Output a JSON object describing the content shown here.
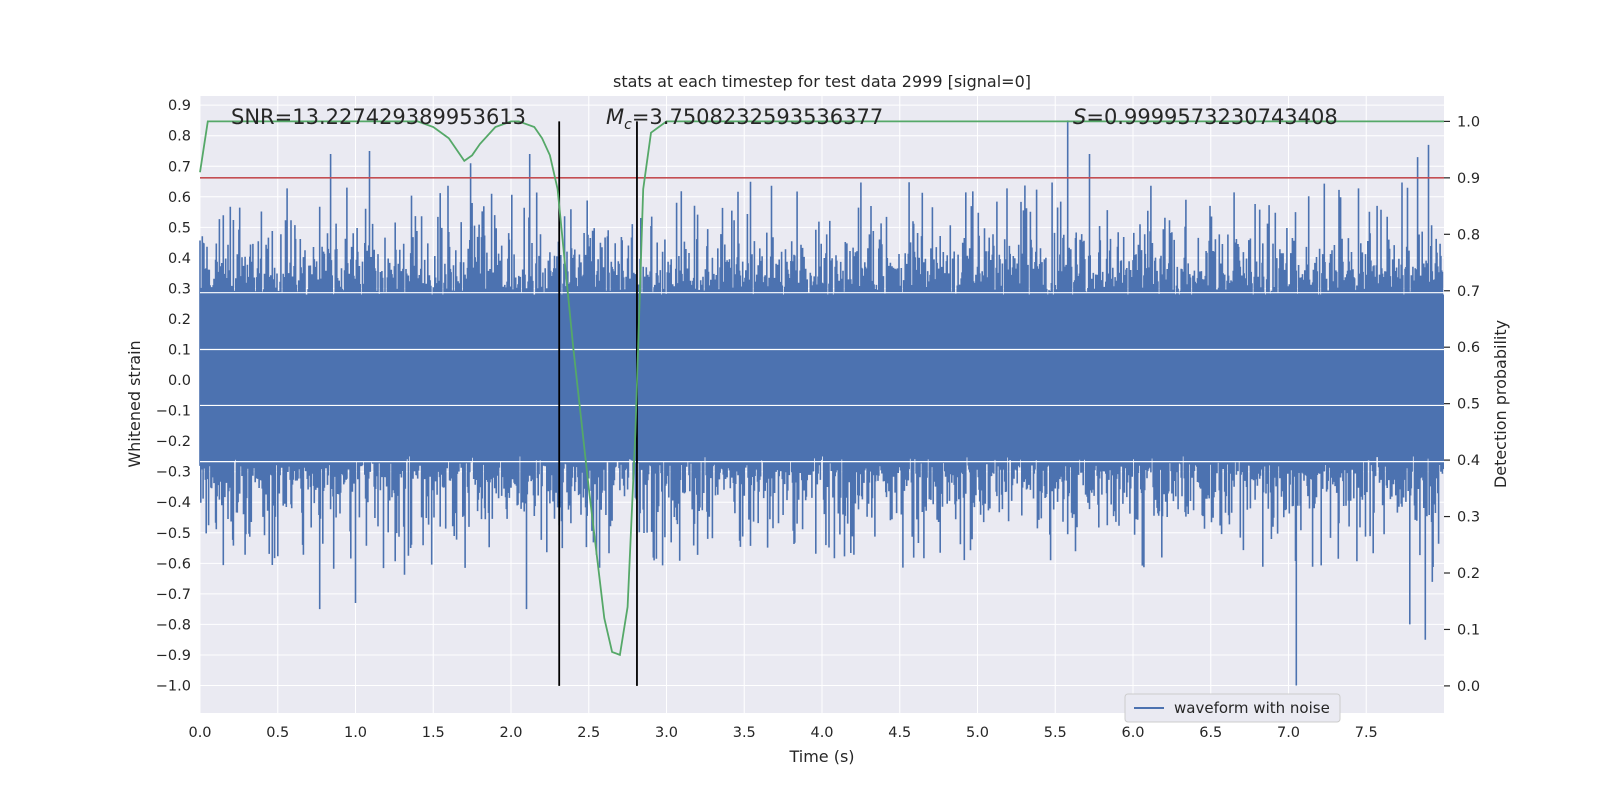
{
  "chart_data": {
    "type": "line",
    "title": "stats at each timestep for test data 2999 [signal=0]",
    "xlabel": "Time (s)",
    "ylabel_left": "Whitened strain",
    "ylabel_right": "Detection probability",
    "xlim": [
      0.0,
      8.0
    ],
    "ylim_left": [
      -1.09,
      0.93
    ],
    "ylim_right": [
      -0.048,
      1.045
    ],
    "x_ticks": [
      0.0,
      0.5,
      1.0,
      1.5,
      2.0,
      2.5,
      3.0,
      3.5,
      4.0,
      4.5,
      5.0,
      5.5,
      6.0,
      6.5,
      7.0,
      7.5
    ],
    "x_tick_labels": [
      "0.0",
      "0.5",
      "1.0",
      "1.5",
      "2.0",
      "2.5",
      "3.0",
      "3.5",
      "4.0",
      "4.5",
      "5.0",
      "5.5",
      "6.0",
      "6.5",
      "7.0",
      "7.5"
    ],
    "y_left_ticks": [
      0.9,
      0.8,
      0.7,
      0.6,
      0.5,
      0.4,
      0.3,
      0.2,
      0.1,
      0.0,
      -0.1,
      -0.2,
      -0.3,
      -0.4,
      -0.5,
      -0.6,
      -0.7,
      -0.8,
      -0.9,
      -1.0
    ],
    "y_left_tick_labels": [
      "0.9",
      "0.8",
      "0.7",
      "0.6",
      "0.5",
      "0.4",
      "0.3",
      "0.2",
      "0.1",
      "0.0",
      "−0.1",
      "−0.2",
      "−0.3",
      "−0.4",
      "−0.5",
      "−0.6",
      "−0.7",
      "−0.8",
      "−0.9",
      "−1.0"
    ],
    "y_right_ticks": [
      1.0,
      0.9,
      0.8,
      0.7,
      0.6,
      0.5,
      0.4,
      0.3,
      0.2,
      0.1,
      0.0
    ],
    "y_right_tick_labels": [
      "1.0",
      "0.9",
      "0.8",
      "0.7",
      "0.6",
      "0.5",
      "0.4",
      "0.3",
      "0.2",
      "0.1",
      "0.0"
    ],
    "annotations": {
      "snr": "SNR=13.227429389953613",
      "mc_symbol": "M",
      "mc_subscript": "c",
      "mc_value": "=3.7508232593536377",
      "s_symbol": "S",
      "s_value": "=0.9999573230743408"
    },
    "legend": {
      "label": "waveform with noise",
      "location": "lower-right"
    },
    "series": [
      {
        "name": "waveform with noise",
        "axis": "left",
        "color": "#4c72b0",
        "kind": "noise-waveform",
        "dense_band": [
          -0.25,
          0.28
        ],
        "duration": 8.0,
        "notable_peaks": [
          {
            "x": 0.84,
            "y": 0.74
          },
          {
            "x": 1.09,
            "y": 0.75
          },
          {
            "x": 1.74,
            "y": 0.71
          },
          {
            "x": 2.12,
            "y": 0.74
          },
          {
            "x": 5.58,
            "y": 0.85
          },
          {
            "x": 5.72,
            "y": 0.74
          },
          {
            "x": 7.9,
            "y": 0.77
          },
          {
            "x": 7.83,
            "y": 0.73
          }
        ],
        "notable_troughs": [
          {
            "x": 0.77,
            "y": -0.75
          },
          {
            "x": 1.0,
            "y": -0.73
          },
          {
            "x": 2.1,
            "y": -0.75
          },
          {
            "x": 7.05,
            "y": -1.0
          },
          {
            "x": 7.88,
            "y": -0.85
          },
          {
            "x": 7.78,
            "y": -0.8
          }
        ]
      },
      {
        "name": "detection probability",
        "axis": "right",
        "color": "#55a868",
        "x": [
          0.0,
          0.05,
          0.1,
          0.2,
          0.4,
          0.6,
          0.8,
          1.0,
          1.2,
          1.4,
          1.5,
          1.6,
          1.65,
          1.7,
          1.75,
          1.8,
          1.9,
          2.0,
          2.05,
          2.1,
          2.15,
          2.2,
          2.25,
          2.3,
          2.4,
          2.5,
          2.6,
          2.65,
          2.7,
          2.75,
          2.8,
          2.85,
          2.9,
          3.0,
          3.5,
          4.0,
          4.5,
          5.0,
          5.3,
          5.6,
          6.0,
          7.0,
          7.5,
          8.0
        ],
        "y": [
          0.91,
          1.0,
          1.0,
          1.0,
          1.0,
          1.0,
          1.0,
          1.0,
          1.0,
          1.0,
          0.99,
          0.97,
          0.95,
          0.93,
          0.94,
          0.96,
          0.99,
          1.0,
          1.0,
          0.995,
          0.99,
          0.97,
          0.94,
          0.88,
          0.6,
          0.35,
          0.12,
          0.06,
          0.055,
          0.14,
          0.45,
          0.88,
          0.98,
          1.0,
          1.0,
          1.0,
          1.0,
          1.0,
          1.0,
          1.0,
          1.0,
          1.0,
          1.0,
          1.0
        ]
      },
      {
        "name": "threshold",
        "axis": "right",
        "color": "#c44e52",
        "kind": "hline",
        "y": 0.9
      }
    ],
    "vlines": [
      {
        "x": 2.31,
        "ymin": 0.0,
        "ymax": 1.0,
        "color": "#000000"
      },
      {
        "x": 2.81,
        "ymin": 0.0,
        "ymax": 1.0,
        "color": "#000000"
      }
    ],
    "grid": true,
    "background_color": "#eaeaf2"
  }
}
